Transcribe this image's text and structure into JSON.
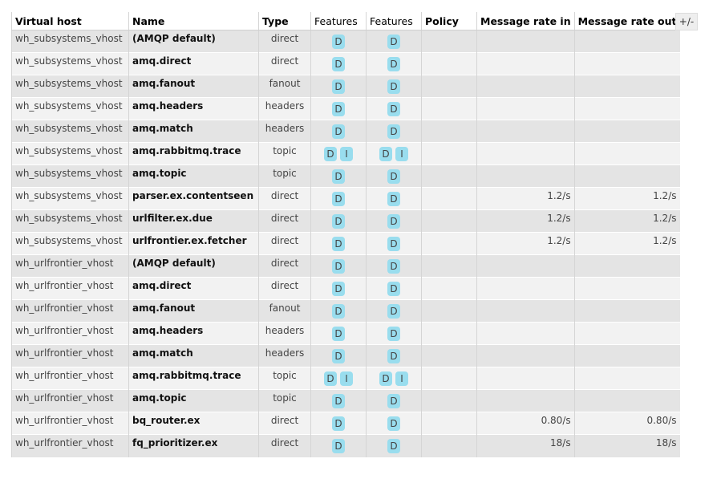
{
  "headers": {
    "vhost": "Virtual host",
    "name": "Name",
    "type": "Type",
    "features1": "Features",
    "features2": "Features",
    "policy": "Policy",
    "rate_in": "Message rate in",
    "rate_out": "Message rate out"
  },
  "toggle_columns": "+/-",
  "rows": [
    {
      "vhost": "wh_subsystems_vhost",
      "name": "(AMQP default)",
      "type": "direct",
      "f1": [
        "D"
      ],
      "f2": [
        "D"
      ],
      "policy": "",
      "rate_in": "",
      "rate_out": ""
    },
    {
      "vhost": "wh_subsystems_vhost",
      "name": "amq.direct",
      "type": "direct",
      "f1": [
        "D"
      ],
      "f2": [
        "D"
      ],
      "policy": "",
      "rate_in": "",
      "rate_out": ""
    },
    {
      "vhost": "wh_subsystems_vhost",
      "name": "amq.fanout",
      "type": "fanout",
      "f1": [
        "D"
      ],
      "f2": [
        "D"
      ],
      "policy": "",
      "rate_in": "",
      "rate_out": ""
    },
    {
      "vhost": "wh_subsystems_vhost",
      "name": "amq.headers",
      "type": "headers",
      "f1": [
        "D"
      ],
      "f2": [
        "D"
      ],
      "policy": "",
      "rate_in": "",
      "rate_out": ""
    },
    {
      "vhost": "wh_subsystems_vhost",
      "name": "amq.match",
      "type": "headers",
      "f1": [
        "D"
      ],
      "f2": [
        "D"
      ],
      "policy": "",
      "rate_in": "",
      "rate_out": ""
    },
    {
      "vhost": "wh_subsystems_vhost",
      "name": "amq.rabbitmq.trace",
      "type": "topic",
      "f1": [
        "D",
        "I"
      ],
      "f2": [
        "D",
        "I"
      ],
      "policy": "",
      "rate_in": "",
      "rate_out": ""
    },
    {
      "vhost": "wh_subsystems_vhost",
      "name": "amq.topic",
      "type": "topic",
      "f1": [
        "D"
      ],
      "f2": [
        "D"
      ],
      "policy": "",
      "rate_in": "",
      "rate_out": ""
    },
    {
      "vhost": "wh_subsystems_vhost",
      "name": "parser.ex.contentseen",
      "type": "direct",
      "f1": [
        "D"
      ],
      "f2": [
        "D"
      ],
      "policy": "",
      "rate_in": "1.2/s",
      "rate_out": "1.2/s"
    },
    {
      "vhost": "wh_subsystems_vhost",
      "name": "urlfilter.ex.due",
      "type": "direct",
      "f1": [
        "D"
      ],
      "f2": [
        "D"
      ],
      "policy": "",
      "rate_in": "1.2/s",
      "rate_out": "1.2/s"
    },
    {
      "vhost": "wh_subsystems_vhost",
      "name": "urlfrontier.ex.fetcher",
      "type": "direct",
      "f1": [
        "D"
      ],
      "f2": [
        "D"
      ],
      "policy": "",
      "rate_in": "1.2/s",
      "rate_out": "1.2/s"
    },
    {
      "vhost": "wh_urlfrontier_vhost",
      "name": "(AMQP default)",
      "type": "direct",
      "f1": [
        "D"
      ],
      "f2": [
        "D"
      ],
      "policy": "",
      "rate_in": "",
      "rate_out": ""
    },
    {
      "vhost": "wh_urlfrontier_vhost",
      "name": "amq.direct",
      "type": "direct",
      "f1": [
        "D"
      ],
      "f2": [
        "D"
      ],
      "policy": "",
      "rate_in": "",
      "rate_out": ""
    },
    {
      "vhost": "wh_urlfrontier_vhost",
      "name": "amq.fanout",
      "type": "fanout",
      "f1": [
        "D"
      ],
      "f2": [
        "D"
      ],
      "policy": "",
      "rate_in": "",
      "rate_out": ""
    },
    {
      "vhost": "wh_urlfrontier_vhost",
      "name": "amq.headers",
      "type": "headers",
      "f1": [
        "D"
      ],
      "f2": [
        "D"
      ],
      "policy": "",
      "rate_in": "",
      "rate_out": ""
    },
    {
      "vhost": "wh_urlfrontier_vhost",
      "name": "amq.match",
      "type": "headers",
      "f1": [
        "D"
      ],
      "f2": [
        "D"
      ],
      "policy": "",
      "rate_in": "",
      "rate_out": ""
    },
    {
      "vhost": "wh_urlfrontier_vhost",
      "name": "amq.rabbitmq.trace",
      "type": "topic",
      "f1": [
        "D",
        "I"
      ],
      "f2": [
        "D",
        "I"
      ],
      "policy": "",
      "rate_in": "",
      "rate_out": ""
    },
    {
      "vhost": "wh_urlfrontier_vhost",
      "name": "amq.topic",
      "type": "topic",
      "f1": [
        "D"
      ],
      "f2": [
        "D"
      ],
      "policy": "",
      "rate_in": "",
      "rate_out": ""
    },
    {
      "vhost": "wh_urlfrontier_vhost",
      "name": "bq_router.ex",
      "type": "direct",
      "f1": [
        "D"
      ],
      "f2": [
        "D"
      ],
      "policy": "",
      "rate_in": "0.80/s",
      "rate_out": "0.80/s"
    },
    {
      "vhost": "wh_urlfrontier_vhost",
      "name": "fq_prioritizer.ex",
      "type": "direct",
      "f1": [
        "D"
      ],
      "f2": [
        "D"
      ],
      "policy": "",
      "rate_in": "18/s",
      "rate_out": "18/s"
    }
  ],
  "colors": {
    "row_dark": "#e4e4e4",
    "row_light": "#f2f2f2",
    "badge": "#99ddee"
  }
}
